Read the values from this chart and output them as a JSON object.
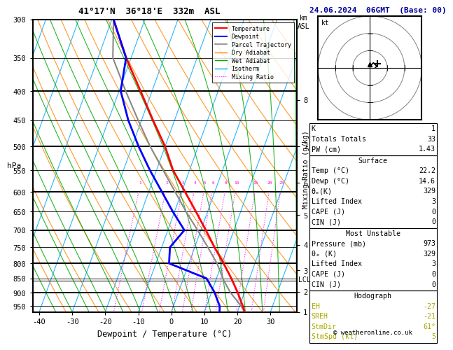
{
  "title_left": "41°17'N  36°18'E  332m  ASL",
  "title_right": "24.06.2024  06GMT  (Base: 00)",
  "xlabel": "Dewpoint / Temperature (°C)",
  "ylabel_left": "hPa",
  "xlim": [
    -42,
    38
  ],
  "xticks": [
    -40,
    -30,
    -20,
    -10,
    0,
    10,
    20,
    30
  ],
  "pressures_all": [
    300,
    350,
    400,
    450,
    500,
    550,
    600,
    650,
    700,
    750,
    800,
    850,
    900,
    950
  ],
  "pressures_major": [
    300,
    400,
    500,
    600,
    700,
    800,
    900
  ],
  "km_ticks": [
    1,
    2,
    3,
    4,
    5,
    6,
    7,
    8
  ],
  "km_pressures": [
    977,
    900,
    825,
    745,
    660,
    580,
    500,
    415
  ],
  "lcl_pressure": 858,
  "pmin": 300,
  "pmax": 973,
  "skew_factor": 32.0,
  "temp_profile": {
    "pressure": [
      973,
      950,
      925,
      900,
      850,
      800,
      750,
      700,
      650,
      600,
      550,
      500,
      450,
      400,
      350,
      300
    ],
    "temp": [
      22.2,
      21.0,
      19.5,
      18.0,
      14.5,
      10.5,
      6.0,
      1.5,
      -3.5,
      -9.0,
      -15.0,
      -20.0,
      -26.5,
      -33.5,
      -41.5,
      -49.5
    ]
  },
  "dewpoint_profile": {
    "pressure": [
      973,
      950,
      925,
      900,
      850,
      800,
      750,
      700,
      650,
      600,
      550,
      500,
      450,
      400,
      350,
      300
    ],
    "dewpoint": [
      14.6,
      14.0,
      12.5,
      11.0,
      7.0,
      -6.0,
      -7.5,
      -5.0,
      -10.5,
      -16.0,
      -22.0,
      -28.0,
      -34.0,
      -39.5,
      -41.5,
      -49.5
    ]
  },
  "parcel_profile": {
    "pressure": [
      973,
      950,
      925,
      900,
      858,
      800,
      750,
      700,
      650,
      600,
      550,
      500,
      450,
      400,
      350,
      300
    ],
    "temp": [
      22.2,
      20.5,
      18.2,
      15.8,
      12.5,
      8.5,
      4.0,
      -1.0,
      -6.5,
      -12.0,
      -18.0,
      -24.5,
      -31.0,
      -38.0,
      -45.5,
      -49.5
    ]
  },
  "colors": {
    "temperature": "#ff0000",
    "dewpoint": "#0000ff",
    "parcel": "#888888",
    "dry_adiabat": "#ff8800",
    "wet_adiabat": "#00aa00",
    "isotherm": "#00aaff",
    "mixing_ratio": "#ff00ff"
  },
  "info_panel": {
    "K": 1,
    "Totals_Totals": 33,
    "PW_cm": 1.43,
    "Surface_Temp": 22.2,
    "Surface_Dewp": 14.6,
    "Surface_theta_e": 329,
    "Surface_Lifted_Index": 3,
    "Surface_CAPE": 0,
    "Surface_CIN": 0,
    "MU_Pressure": 973,
    "MU_theta_e": 329,
    "MU_Lifted_Index": 3,
    "MU_CAPE": 0,
    "MU_CIN": 0,
    "Hodo_EH": -27,
    "Hodo_SREH": -21,
    "Hodo_StmDir": 61,
    "Hodo_StmSpd": 5
  }
}
